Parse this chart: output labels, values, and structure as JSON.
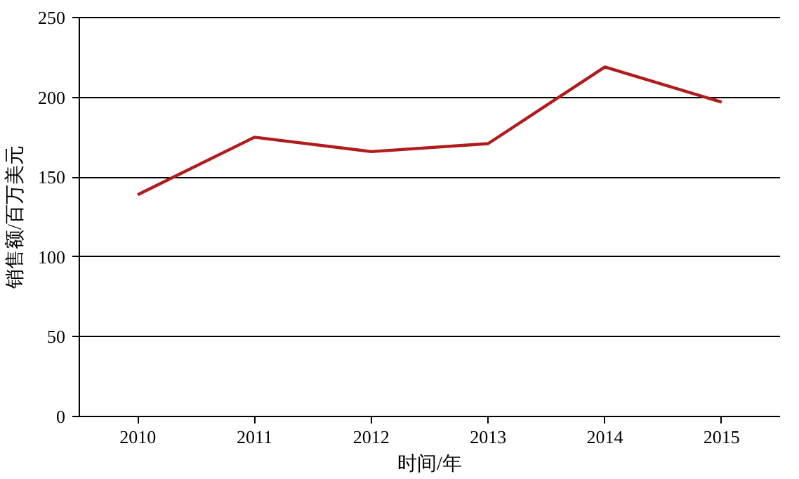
{
  "chart_data": {
    "type": "line",
    "xlabel": "时间/年",
    "ylabel": "销售额/百万美元",
    "categories": [
      "2010",
      "2011",
      "2012",
      "2013",
      "2014",
      "2015"
    ],
    "series": [
      {
        "color": "#b01c1c",
        "values": [
          139,
          175,
          166,
          171,
          219,
          197
        ]
      }
    ],
    "ylim": [
      0,
      250
    ],
    "yticks": [
      0,
      50,
      100,
      150,
      200,
      250
    ],
    "grid": "y",
    "marker": "none",
    "line_style": "solid"
  }
}
